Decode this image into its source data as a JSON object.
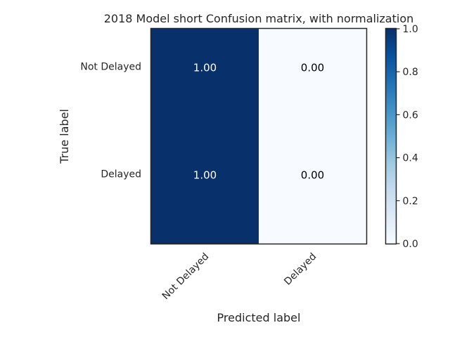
{
  "chart_data": {
    "type": "heatmap",
    "title": "2018 Model short Confusion matrix, with normalization",
    "xlabel": "Predicted label",
    "ylabel": "True label",
    "x_categories": [
      "Not Delayed",
      "Delayed"
    ],
    "y_categories": [
      "Not Delayed",
      "Delayed"
    ],
    "matrix": [
      [
        1.0,
        0.0
      ],
      [
        1.0,
        0.0
      ]
    ],
    "cell_labels": [
      [
        "1.00",
        "0.00"
      ],
      [
        "1.00",
        "0.00"
      ]
    ],
    "colormap": "Blues",
    "colorbar": {
      "range": [
        0.0,
        1.0
      ],
      "ticks": [
        0.0,
        0.2,
        0.4,
        0.6,
        0.8,
        1.0
      ],
      "tick_labels": [
        "0.0",
        "0.2",
        "0.4",
        "0.6",
        "0.8",
        "1.0"
      ]
    },
    "grid": false,
    "colors": {
      "low": "#f7fbff",
      "high": "#08306b",
      "text_on_dark": "#ffffff",
      "text_on_light": "#000000"
    }
  }
}
